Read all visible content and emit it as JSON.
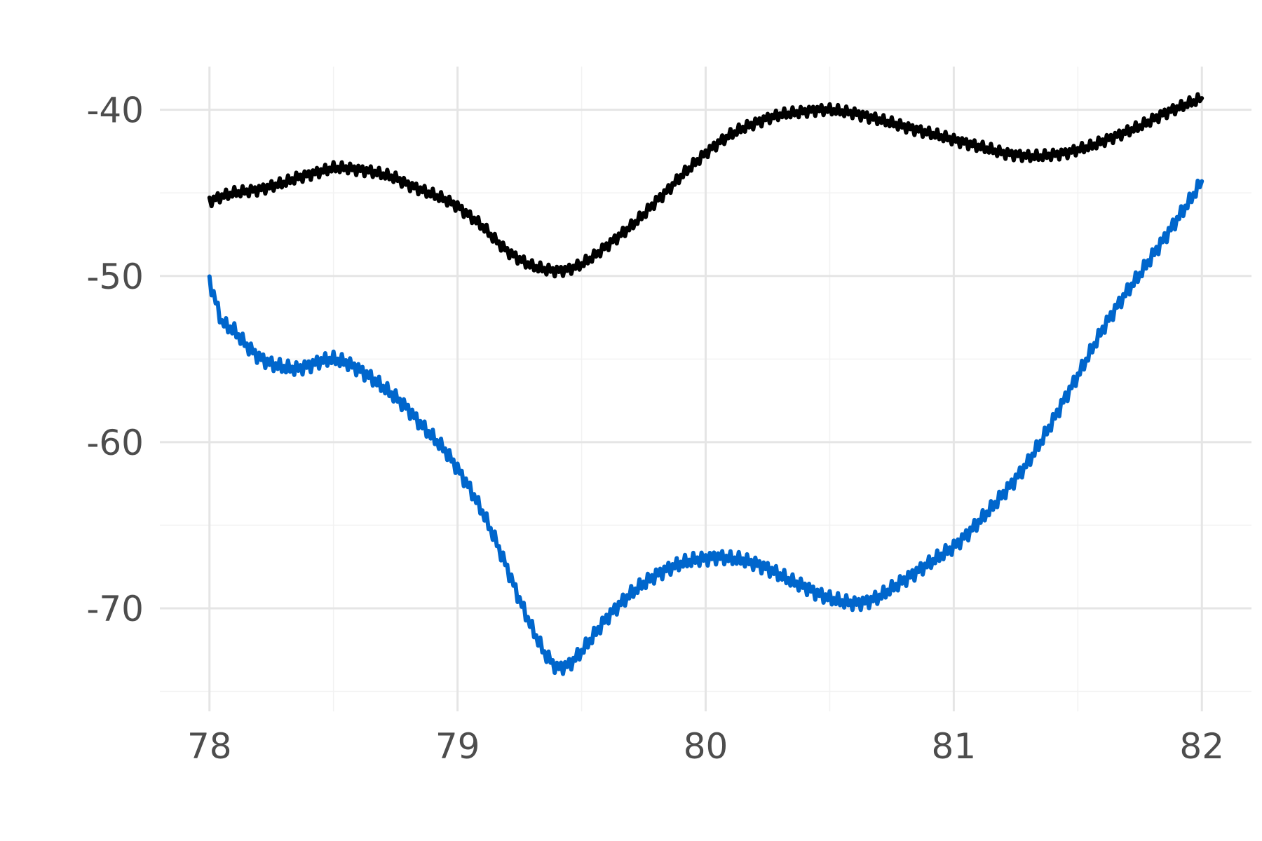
{
  "chart_data": {
    "type": "line",
    "title": "",
    "xlabel": "",
    "ylabel": "",
    "xlim": [
      77.8,
      82.2
    ],
    "ylim": [
      -76.2,
      -37.4
    ],
    "x_ticks": [
      78,
      79,
      80,
      81,
      82
    ],
    "y_ticks": [
      -40,
      -50,
      -60,
      -70
    ],
    "x_tick_labels": [
      "78",
      "79",
      "80",
      "81",
      "82"
    ],
    "y_tick_labels": [
      "-40",
      "-50",
      "-60",
      "-70"
    ],
    "x_minor": [
      78.5,
      79.5,
      80.5,
      81.5
    ],
    "y_minor": [
      -45,
      -55,
      -65,
      -75
    ],
    "grid": true,
    "legend": "none",
    "series": [
      {
        "color": "#000000",
        "x": [
          78.0,
          78.05,
          78.1,
          78.15,
          78.2,
          78.25,
          78.3,
          78.35,
          78.4,
          78.45,
          78.5,
          78.55,
          78.6,
          78.65,
          78.7,
          78.75,
          78.8,
          78.85,
          78.9,
          78.95,
          79.0,
          79.05,
          79.1,
          79.15,
          79.2,
          79.25,
          79.3,
          79.35,
          79.4,
          79.45,
          79.5,
          79.55,
          79.6,
          79.65,
          79.7,
          79.75,
          79.8,
          79.85,
          79.9,
          79.95,
          80.0,
          80.05,
          80.1,
          80.15,
          80.2,
          80.25,
          80.3,
          80.35,
          80.4,
          80.45,
          80.5,
          80.55,
          80.6,
          80.65,
          80.7,
          80.75,
          80.8,
          80.85,
          80.9,
          80.95,
          81.0,
          81.05,
          81.1,
          81.15,
          81.2,
          81.25,
          81.3,
          81.35,
          81.4,
          81.45,
          81.5,
          81.55,
          81.6,
          81.65,
          81.7,
          81.75,
          81.8,
          81.85,
          81.9,
          81.95,
          82.0
        ],
        "y": [
          -45.5,
          -45.2,
          -45.0,
          -44.9,
          -44.8,
          -44.6,
          -44.4,
          -44.1,
          -43.9,
          -43.7,
          -43.5,
          -43.5,
          -43.6,
          -43.7,
          -43.9,
          -44.1,
          -44.5,
          -44.8,
          -45.1,
          -45.4,
          -45.8,
          -46.4,
          -47.0,
          -47.8,
          -48.5,
          -49.0,
          -49.4,
          -49.6,
          -49.7,
          -49.6,
          -49.3,
          -48.8,
          -48.2,
          -47.6,
          -47.0,
          -46.3,
          -45.5,
          -44.8,
          -44.0,
          -43.3,
          -42.6,
          -42.0,
          -41.5,
          -41.1,
          -40.8,
          -40.5,
          -40.3,
          -40.2,
          -40.1,
          -40.0,
          -40.0,
          -40.1,
          -40.2,
          -40.4,
          -40.6,
          -40.8,
          -41.0,
          -41.2,
          -41.4,
          -41.6,
          -41.8,
          -42.0,
          -42.2,
          -42.4,
          -42.6,
          -42.7,
          -42.8,
          -42.8,
          -42.7,
          -42.6,
          -42.4,
          -42.2,
          -41.9,
          -41.6,
          -41.3,
          -41.0,
          -40.6,
          -40.2,
          -39.9,
          -39.6,
          -39.3
        ]
      },
      {
        "color": "#0066cc",
        "x": [
          78.0,
          78.05,
          78.1,
          78.15,
          78.2,
          78.25,
          78.3,
          78.35,
          78.4,
          78.45,
          78.5,
          78.55,
          78.6,
          78.65,
          78.7,
          78.75,
          78.8,
          78.85,
          78.9,
          78.95,
          79.0,
          79.05,
          79.1,
          79.15,
          79.2,
          79.25,
          79.3,
          79.35,
          79.4,
          79.45,
          79.5,
          79.55,
          79.6,
          79.65,
          79.7,
          79.75,
          79.8,
          79.85,
          79.9,
          79.95,
          80.0,
          80.05,
          80.1,
          80.15,
          80.2,
          80.25,
          80.3,
          80.35,
          80.4,
          80.45,
          80.5,
          80.55,
          80.6,
          80.65,
          80.7,
          80.75,
          80.8,
          80.85,
          80.9,
          80.95,
          81.0,
          81.05,
          81.1,
          81.15,
          81.2,
          81.25,
          81.3,
          81.35,
          81.4,
          81.45,
          81.5,
          81.55,
          81.6,
          81.65,
          81.7,
          81.75,
          81.8,
          81.85,
          81.9,
          81.95,
          82.0
        ],
        "y": [
          -50.3,
          -52.8,
          -53.3,
          -54.2,
          -54.9,
          -55.3,
          -55.5,
          -55.6,
          -55.4,
          -55.1,
          -55.0,
          -55.2,
          -55.6,
          -56.1,
          -56.7,
          -57.3,
          -58.0,
          -58.9,
          -59.7,
          -60.5,
          -61.6,
          -62.8,
          -64.2,
          -65.8,
          -67.6,
          -69.5,
          -71.2,
          -72.7,
          -73.6,
          -73.4,
          -72.6,
          -71.6,
          -70.6,
          -69.8,
          -69.1,
          -68.5,
          -68.0,
          -67.6,
          -67.3,
          -67.1,
          -67.0,
          -66.9,
          -67.0,
          -67.1,
          -67.3,
          -67.6,
          -68.0,
          -68.4,
          -68.7,
          -69.1,
          -69.4,
          -69.6,
          -69.7,
          -69.6,
          -69.3,
          -68.8,
          -68.3,
          -67.8,
          -67.3,
          -66.8,
          -66.3,
          -65.6,
          -64.8,
          -64.0,
          -63.1,
          -62.2,
          -61.2,
          -60.0,
          -58.7,
          -57.3,
          -56.0,
          -54.6,
          -53.2,
          -52.0,
          -50.9,
          -49.9,
          -48.8,
          -47.7,
          -46.6,
          -45.5,
          -44.3
        ]
      }
    ]
  }
}
